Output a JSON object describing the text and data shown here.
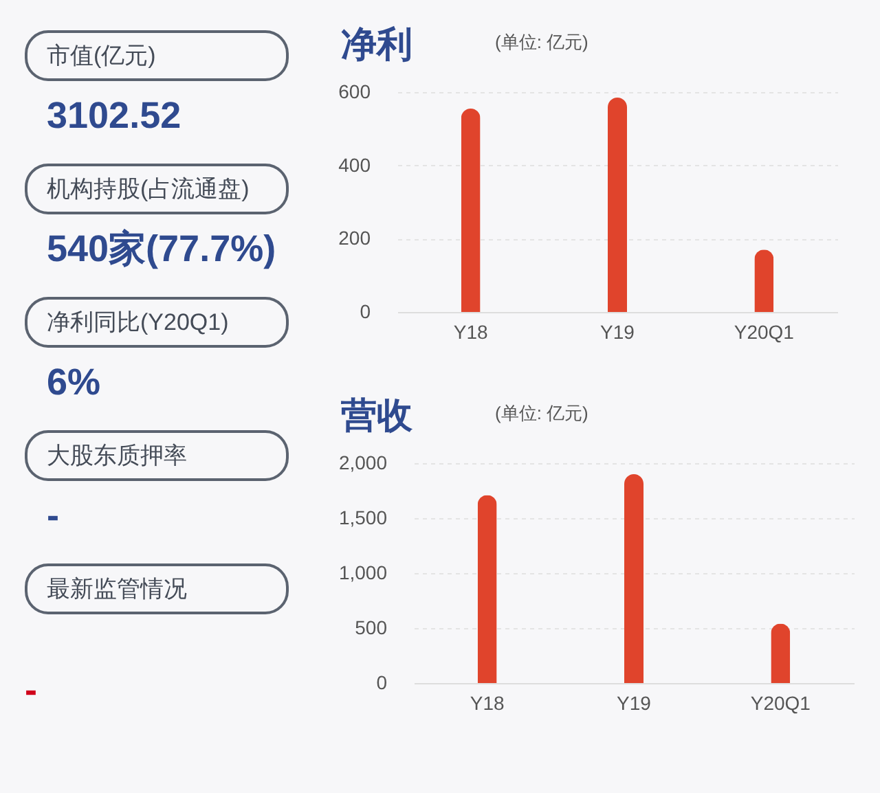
{
  "chart_data": [
    {
      "type": "other",
      "annotations": [
        "市值(亿元)",
        "3102.52",
        "机构持股(占流通盘)",
        "540家(77.7%)",
        "净利同比(Y20Q1)",
        "6%",
        "大股东质押率",
        "-",
        "最新监管情况",
        "-"
      ]
    },
    {
      "type": "bar",
      "title": "净利",
      "subtitle": "(单位: 亿元)",
      "categories": [
        "Y18",
        "Y19",
        "Y20Q1"
      ],
      "values": [
        555,
        585,
        170
      ],
      "color": "#e0442c",
      "ylim": [
        0,
        600
      ],
      "yticks": [
        0,
        200,
        400,
        600
      ],
      "grid": "y"
    },
    {
      "type": "bar",
      "title": "营收",
      "subtitle": "(单位: 亿元)",
      "categories": [
        "Y18",
        "Y19",
        "Y20Q1"
      ],
      "values": [
        1710,
        1900,
        540
      ],
      "color": "#e0442c",
      "ylim": [
        0,
        2000
      ],
      "yticks": [
        0,
        {
          "value": 500,
          "label": "500"
        },
        {
          "value": 1000,
          "label": "1,000"
        },
        {
          "value": 1500,
          "label": "1,500"
        },
        {
          "value": 2000,
          "label": "2,000"
        }
      ],
      "grid": "y"
    }
  ]
}
